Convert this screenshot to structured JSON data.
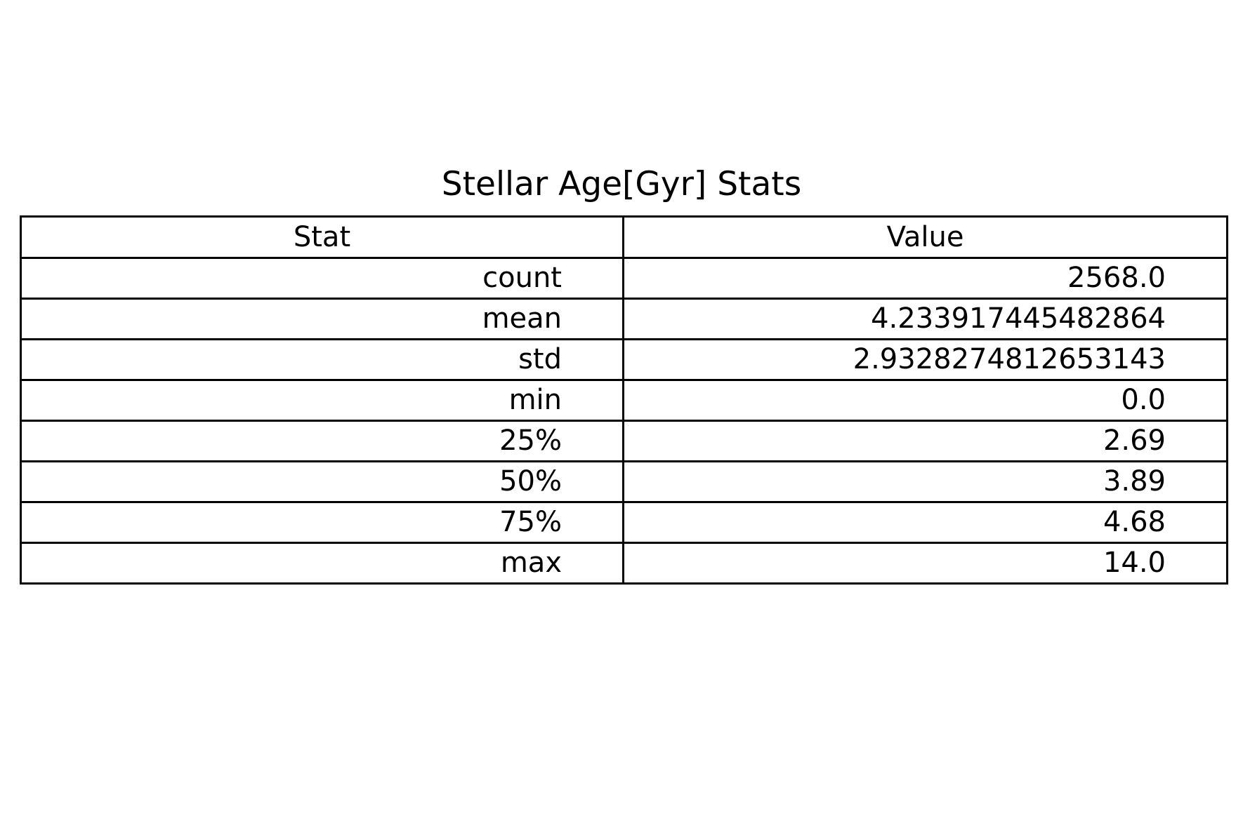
{
  "chart_data": {
    "type": "table",
    "title": "Stellar Age[Gyr] Stats",
    "columns": [
      "Stat",
      "Value"
    ],
    "rows": [
      [
        "count",
        "2568.0"
      ],
      [
        "mean",
        "4.233917445482864"
      ],
      [
        "std",
        "2.9328274812653143"
      ],
      [
        "min",
        "0.0"
      ],
      [
        "25%",
        "2.69"
      ],
      [
        "50%",
        "3.89"
      ],
      [
        "75%",
        "4.68"
      ],
      [
        "max",
        "14.0"
      ]
    ]
  }
}
